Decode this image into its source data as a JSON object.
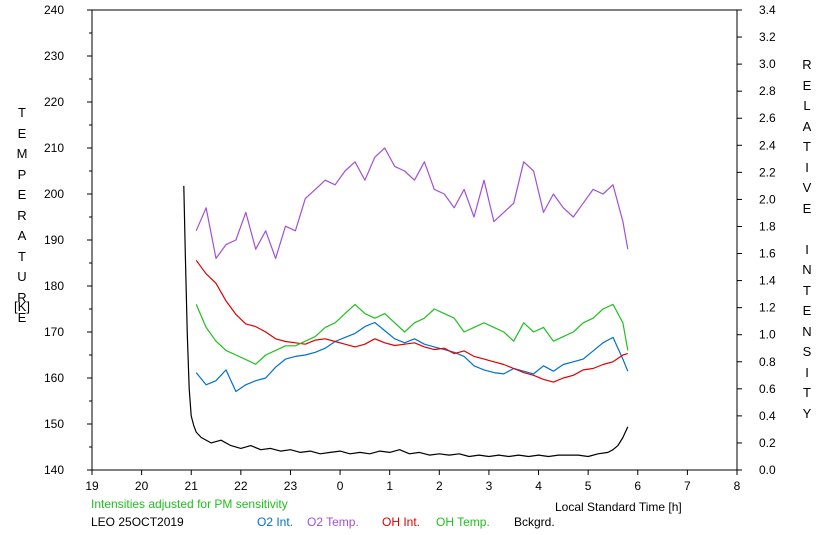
{
  "chart_data": {
    "type": "line",
    "title": "",
    "xlabel": "Local Standard Time [h]",
    "ylabel_left": "TEMPERATURE",
    "ylabel_left_unit": "[K]",
    "ylabel_right": "RELATIVE INTENSITY",
    "xlim": [
      19,
      32
    ],
    "x_tick_labels": [
      "19",
      "20",
      "21",
      "22",
      "23",
      "0",
      "1",
      "2",
      "3",
      "4",
      "5",
      "6",
      "7",
      "8"
    ],
    "ylim_left": [
      140,
      240
    ],
    "y_left_ticks": [
      "140",
      "150",
      "160",
      "170",
      "180",
      "190",
      "200",
      "210",
      "220",
      "230",
      "240"
    ],
    "ylim_right": [
      0.0,
      3.4
    ],
    "y_right_ticks": [
      "0.0",
      "0.2",
      "0.4",
      "0.6",
      "0.8",
      "1.0",
      "1.2",
      "1.4",
      "1.6",
      "1.8",
      "2.0",
      "2.2",
      "2.4",
      "2.6",
      "2.8",
      "3.0",
      "3.2",
      "3.4"
    ],
    "note": "Intensities adjusted for PM sensitivity",
    "station": "LEO 25OCT2019",
    "legend_position": "bottom",
    "grid": false,
    "series": [
      {
        "name": "O2 Int.",
        "axis": "right",
        "color": "#0070d0",
        "x": [
          21.1,
          21.3,
          21.5,
          21.7,
          21.9,
          22.1,
          22.3,
          22.5,
          22.7,
          22.9,
          23.1,
          23.3,
          23.5,
          23.7,
          23.9,
          24.1,
          24.3,
          24.5,
          24.7,
          24.9,
          25.1,
          25.3,
          25.5,
          25.7,
          25.9,
          26.1,
          26.3,
          26.5,
          26.7,
          26.9,
          27.1,
          27.3,
          27.5,
          27.7,
          27.9,
          28.1,
          28.3,
          28.5,
          28.7,
          28.9,
          29.1,
          29.3,
          29.5,
          29.7,
          29.8
        ],
        "y": [
          0.72,
          0.63,
          0.66,
          0.74,
          0.58,
          0.63,
          0.66,
          0.68,
          0.76,
          0.82,
          0.84,
          0.85,
          0.87,
          0.9,
          0.95,
          0.98,
          1.01,
          1.06,
          1.09,
          1.03,
          0.97,
          0.94,
          0.97,
          0.93,
          0.91,
          0.89,
          0.87,
          0.84,
          0.77,
          0.74,
          0.72,
          0.71,
          0.75,
          0.73,
          0.71,
          0.77,
          0.73,
          0.78,
          0.8,
          0.82,
          0.88,
          0.94,
          0.98,
          0.82,
          0.73
        ]
      },
      {
        "name": "O2 Temp.",
        "axis": "left",
        "color": "#a050d8",
        "x": [
          21.1,
          21.3,
          21.5,
          21.7,
          21.9,
          22.1,
          22.3,
          22.5,
          22.7,
          22.9,
          23.1,
          23.3,
          23.5,
          23.7,
          23.9,
          24.1,
          24.3,
          24.5,
          24.7,
          24.9,
          25.1,
          25.3,
          25.5,
          25.7,
          25.9,
          26.1,
          26.3,
          26.5,
          26.7,
          26.9,
          27.1,
          27.3,
          27.5,
          27.7,
          27.9,
          28.1,
          28.3,
          28.5,
          28.7,
          28.9,
          29.1,
          29.3,
          29.5,
          29.7,
          29.8
        ],
        "y": [
          192,
          197,
          186,
          189,
          190,
          196,
          188,
          192,
          186,
          193,
          192,
          199,
          201,
          203,
          202,
          205,
          207,
          203,
          208,
          210,
          206,
          205,
          203,
          207,
          201,
          200,
          197,
          201,
          195,
          203,
          194,
          196,
          198,
          207,
          205,
          196,
          200,
          197,
          195,
          198,
          201,
          200,
          202,
          194,
          188
        ]
      },
      {
        "name": "OH Int.",
        "axis": "right",
        "color": "#e00000",
        "x": [
          21.1,
          21.3,
          21.5,
          21.7,
          21.9,
          22.1,
          22.3,
          22.5,
          22.7,
          22.9,
          23.1,
          23.3,
          23.5,
          23.7,
          23.9,
          24.1,
          24.3,
          24.5,
          24.7,
          24.9,
          25.1,
          25.3,
          25.5,
          25.7,
          25.9,
          26.1,
          26.3,
          26.5,
          26.7,
          26.9,
          27.1,
          27.3,
          27.5,
          27.7,
          27.9,
          28.1,
          28.3,
          28.5,
          28.7,
          28.9,
          29.1,
          29.3,
          29.5,
          29.7,
          29.8
        ],
        "y": [
          1.55,
          1.45,
          1.38,
          1.25,
          1.15,
          1.08,
          1.06,
          1.02,
          0.97,
          0.95,
          0.94,
          0.93,
          0.96,
          0.97,
          0.95,
          0.93,
          0.91,
          0.93,
          0.97,
          0.94,
          0.92,
          0.93,
          0.94,
          0.91,
          0.89,
          0.9,
          0.86,
          0.88,
          0.84,
          0.82,
          0.8,
          0.78,
          0.75,
          0.72,
          0.7,
          0.67,
          0.65,
          0.68,
          0.7,
          0.74,
          0.75,
          0.78,
          0.8,
          0.85,
          0.86
        ]
      },
      {
        "name": "OH Temp.",
        "axis": "left",
        "color": "#20c020",
        "x": [
          21.1,
          21.3,
          21.5,
          21.7,
          21.9,
          22.1,
          22.3,
          22.5,
          22.7,
          22.9,
          23.1,
          23.3,
          23.5,
          23.7,
          23.9,
          24.1,
          24.3,
          24.5,
          24.7,
          24.9,
          25.1,
          25.3,
          25.5,
          25.7,
          25.9,
          26.1,
          26.3,
          26.5,
          26.7,
          26.9,
          27.1,
          27.3,
          27.5,
          27.7,
          27.9,
          28.1,
          28.3,
          28.5,
          28.7,
          28.9,
          29.1,
          29.3,
          29.5,
          29.7,
          29.8
        ],
        "y": [
          176,
          171,
          168,
          166,
          165,
          164,
          163,
          165,
          166,
          167,
          167,
          168,
          169,
          171,
          172,
          174,
          176,
          174,
          173,
          174,
          172,
          170,
          172,
          173,
          175,
          174,
          173,
          170,
          171,
          172,
          171,
          170,
          168,
          172,
          170,
          171,
          168,
          169,
          170,
          172,
          173,
          175,
          176,
          172,
          166
        ]
      },
      {
        "name": "Bckgrd.",
        "axis": "right",
        "color": "#000000",
        "x": [
          20.85,
          20.88,
          20.92,
          20.96,
          21.0,
          21.05,
          21.1,
          21.2,
          21.4,
          21.6,
          21.8,
          22.0,
          22.2,
          22.4,
          22.6,
          22.8,
          23.0,
          23.2,
          23.4,
          23.6,
          23.8,
          24.0,
          24.2,
          24.4,
          24.6,
          24.8,
          25.0,
          25.2,
          25.4,
          25.6,
          25.8,
          26.0,
          26.2,
          26.4,
          26.6,
          26.8,
          27.0,
          27.2,
          27.4,
          27.6,
          27.8,
          28.0,
          28.2,
          28.4,
          28.6,
          28.8,
          29.0,
          29.2,
          29.4,
          29.5,
          29.6,
          29.7,
          29.8
        ],
        "y": [
          2.1,
          1.6,
          1.0,
          0.6,
          0.4,
          0.33,
          0.28,
          0.24,
          0.2,
          0.22,
          0.18,
          0.16,
          0.18,
          0.15,
          0.16,
          0.14,
          0.15,
          0.13,
          0.14,
          0.12,
          0.13,
          0.14,
          0.12,
          0.13,
          0.12,
          0.14,
          0.13,
          0.15,
          0.12,
          0.13,
          0.11,
          0.12,
          0.11,
          0.12,
          0.1,
          0.11,
          0.1,
          0.11,
          0.1,
          0.11,
          0.1,
          0.11,
          0.1,
          0.11,
          0.11,
          0.11,
          0.1,
          0.12,
          0.13,
          0.15,
          0.18,
          0.24,
          0.32
        ]
      }
    ]
  }
}
